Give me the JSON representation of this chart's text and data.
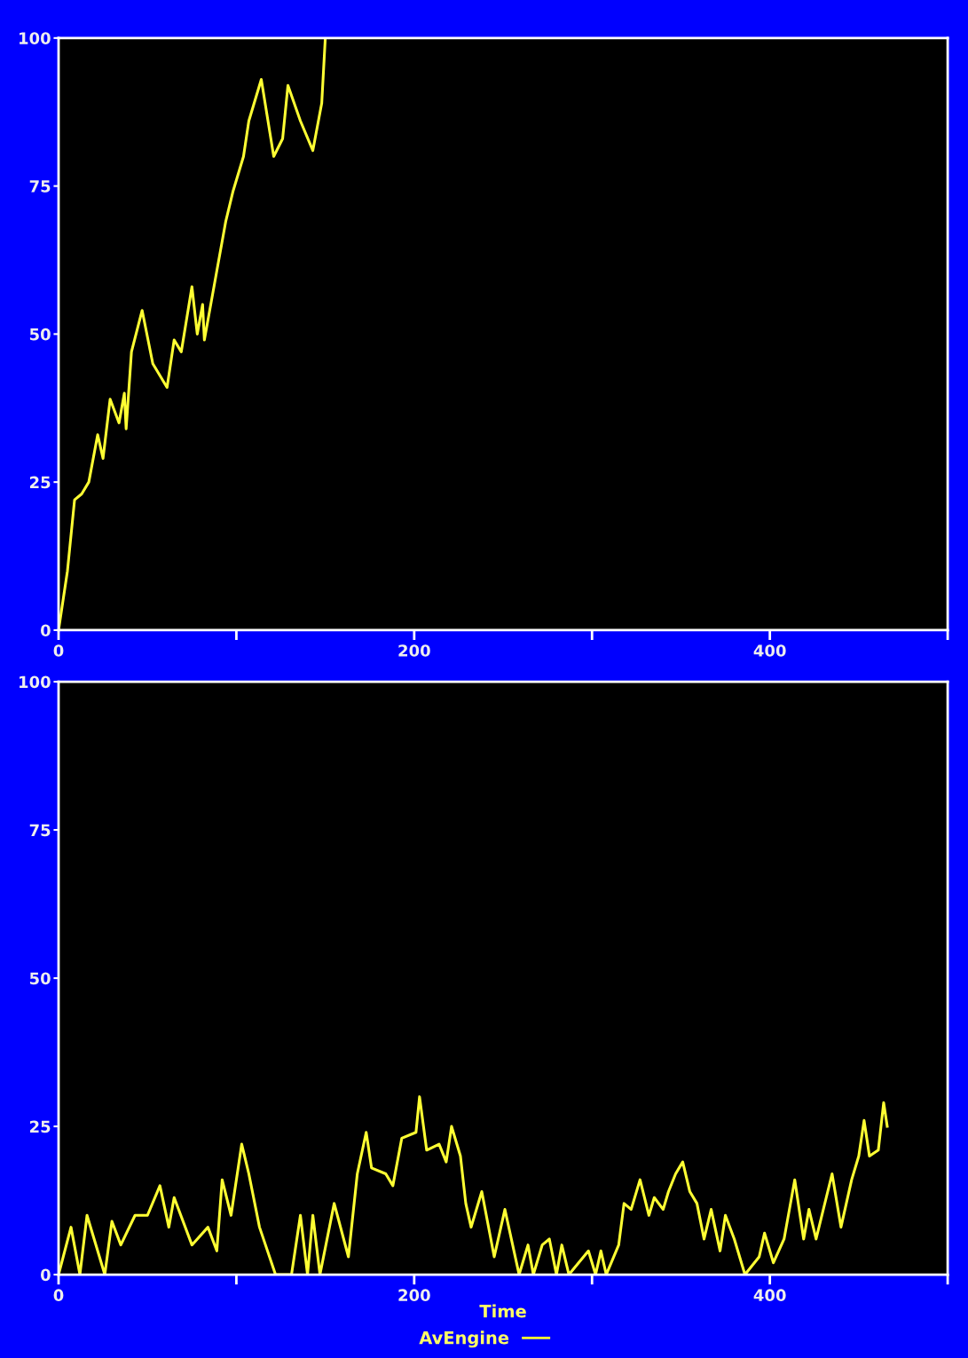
{
  "chart_data": [
    {
      "type": "line",
      "xlim": [
        0,
        500
      ],
      "ylim": [
        0,
        100
      ],
      "xticks": [
        0,
        {
          "value": 100,
          "label": null
        },
        200,
        {
          "value": 300,
          "label": null
        },
        400,
        {
          "value": 500,
          "label": null
        }
      ],
      "yticks": [
        0,
        25,
        50,
        75,
        100
      ],
      "grid": false,
      "series": [
        {
          "color": "#ffff33",
          "x": [
            0,
            2,
            5,
            9,
            13,
            17,
            22,
            25,
            29,
            34,
            37,
            38,
            41,
            47,
            53,
            61,
            65,
            69,
            75,
            78,
            81,
            82,
            88,
            94,
            98,
            104,
            107,
            114,
            121,
            126,
            129,
            136,
            143,
            148,
            150
          ],
          "values": [
            0,
            4,
            10,
            22,
            23,
            25,
            33,
            29,
            39,
            35,
            40,
            34,
            47,
            54,
            45,
            41,
            49,
            47,
            58,
            50,
            55,
            49,
            59,
            69,
            74,
            80,
            86,
            93,
            80,
            83,
            92,
            86,
            81,
            89,
            100
          ]
        }
      ]
    },
    {
      "type": "line",
      "xlim": [
        0,
        500
      ],
      "ylim": [
        0,
        100
      ],
      "xlabel": "Time",
      "legend": "bottom",
      "xticks": [
        0,
        {
          "value": 100,
          "label": null
        },
        200,
        {
          "value": 300,
          "label": null
        },
        400,
        {
          "value": 500,
          "label": null
        }
      ],
      "yticks": [
        0,
        25,
        50,
        75,
        100
      ],
      "grid": false,
      "series": [
        {
          "name": "AvEngine",
          "color": "#ffff33",
          "x": [
            0,
            7,
            12,
            16,
            26,
            30,
            35,
            43,
            50,
            57,
            62,
            65,
            75,
            84,
            89,
            92,
            97,
            103,
            107,
            113,
            122,
            131,
            136,
            140,
            143,
            147,
            155,
            163,
            168,
            173,
            176,
            184,
            188,
            193,
            201,
            203,
            207,
            214,
            218,
            221,
            226,
            229,
            232,
            238,
            245,
            251,
            259,
            264,
            267,
            272,
            276,
            280,
            283,
            287,
            298,
            302,
            305,
            308,
            315,
            318,
            322,
            327,
            332,
            335,
            340,
            343,
            347,
            351,
            355,
            359,
            363,
            367,
            372,
            375,
            380,
            386,
            394,
            397,
            402,
            408,
            414,
            419,
            422,
            426,
            435,
            440,
            446,
            450,
            453,
            456,
            461,
            464,
            466
          ],
          "values": [
            0,
            8,
            0,
            10,
            0,
            9,
            5,
            10,
            10,
            15,
            8,
            13,
            5,
            8,
            4,
            16,
            10,
            22,
            17,
            8,
            0,
            0,
            10,
            0,
            10,
            0,
            12,
            3,
            17,
            24,
            18,
            17,
            15,
            23,
            24,
            30,
            21,
            22,
            19,
            25,
            20,
            12,
            8,
            14,
            3,
            11,
            0,
            5,
            0,
            5,
            6,
            0,
            5,
            0,
            4,
            0,
            4,
            0,
            5,
            12,
            11,
            16,
            10,
            13,
            11,
            14,
            17,
            19,
            14,
            12,
            6,
            11,
            4,
            10,
            6,
            0,
            3,
            7,
            2,
            6,
            16,
            6,
            11,
            6,
            17,
            8,
            16,
            20,
            26,
            20,
            21,
            29,
            25
          ]
        }
      ]
    }
  ]
}
